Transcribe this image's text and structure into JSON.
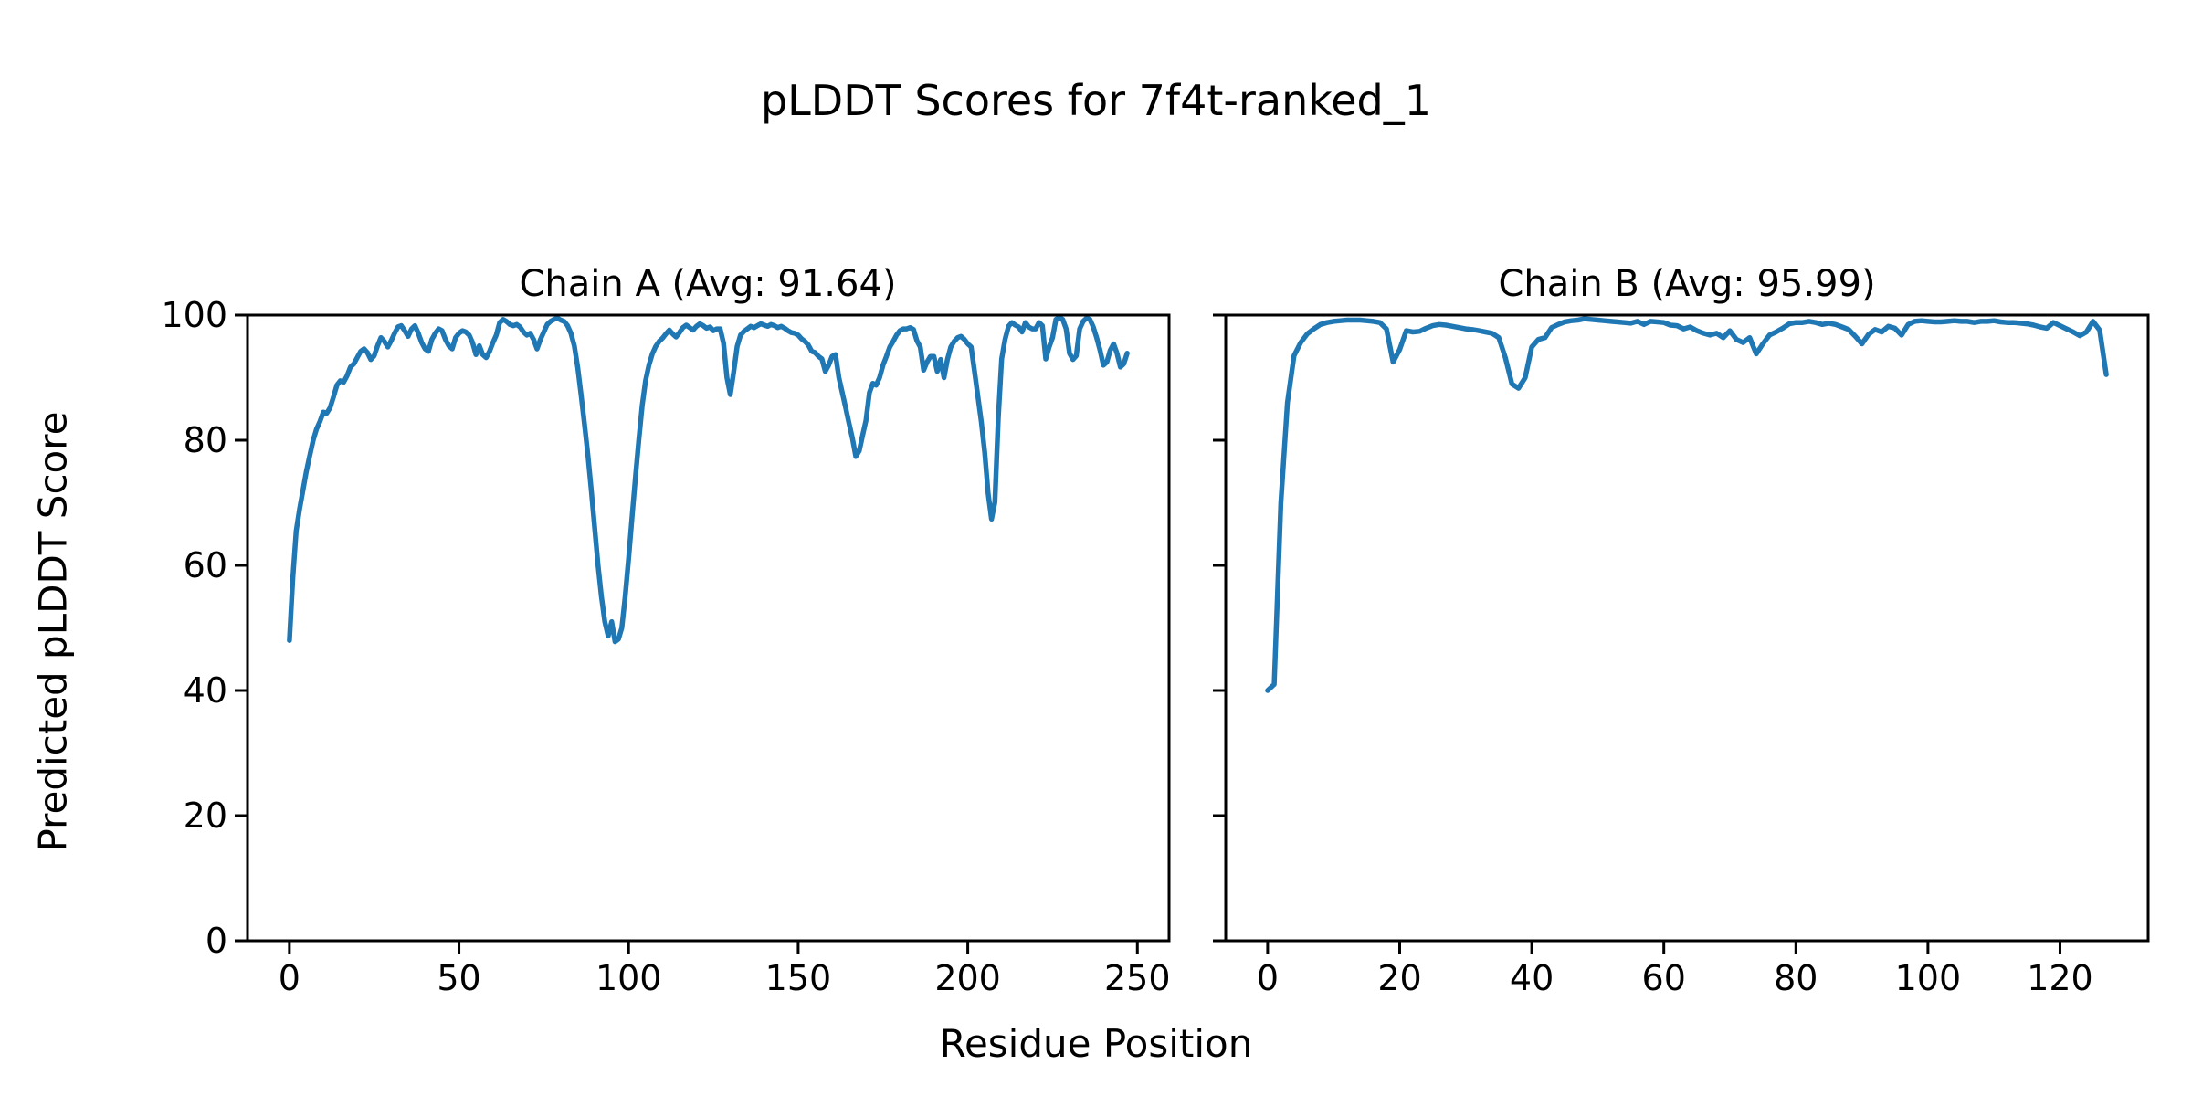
{
  "figure": {
    "title": "pLDDT Scores for 7f4t-ranked_1",
    "xlabel": "Residue Position",
    "ylabel": "Predicted pLDDT Score",
    "line_color": "#1f77b4",
    "axis_color": "#000000",
    "background_color": "#ffffff"
  },
  "chart_data": [
    {
      "type": "line",
      "title": "Chain A (Avg: 91.64)",
      "average": 91.64,
      "legend": "none",
      "grid": false,
      "xlim": [
        -12.35,
        259.35
      ],
      "ylim": [
        0,
        100
      ],
      "xticks": [
        0,
        50,
        100,
        150,
        200,
        250
      ],
      "yticks": [
        0,
        20,
        40,
        60,
        80,
        100
      ],
      "show_ytick_labels": true,
      "series": [
        {
          "name": "Chain A pLDDT",
          "color": "#1f77b4",
          "x_start": 0,
          "x_step": 1,
          "values": [
            48,
            58,
            65.5,
            69,
            72,
            75,
            77.5,
            80,
            81.8,
            83,
            84.5,
            84.3,
            85.2,
            86.9,
            88.8,
            89.5,
            89.3,
            90.3,
            91.7,
            92.2,
            93.2,
            94.2,
            94.6,
            94,
            92.9,
            93.5,
            95.1,
            96.4,
            95.8,
            94.9,
            95.9,
            97.1,
            98.1,
            98.3,
            97.5,
            96.6,
            97.8,
            98.3,
            97.1,
            95.6,
            94.6,
            94.2,
            96.1,
            97.1,
            97.8,
            97.5,
            96.1,
            95.1,
            94.6,
            96.4,
            97.1,
            97.5,
            97.3,
            96.8,
            95.6,
            93.7,
            95.1,
            93.7,
            93.2,
            94.2,
            95.6,
            96.8,
            98.8,
            99.3,
            99,
            98.5,
            98.3,
            98.5,
            98.1,
            97.3,
            96.8,
            97.1,
            96.1,
            94.6,
            96.1,
            97.3,
            98.5,
            99,
            99.3,
            99.5,
            99.2,
            99,
            98.3,
            97.1,
            95.1,
            91.7,
            87.3,
            82.5,
            77.6,
            72,
            66,
            60,
            55,
            51,
            48.7,
            51,
            47.8,
            48.2,
            50,
            55,
            61,
            67.5,
            74,
            80,
            85.5,
            89.5,
            92,
            93.8,
            95,
            95.8,
            96.3,
            97,
            97.6,
            97,
            96.5,
            97.2,
            98,
            98.4,
            98,
            97.6,
            98.2,
            98.6,
            98.3,
            97.9,
            98.1,
            97.5,
            97.8,
            97.8,
            95.5,
            90,
            87.3,
            91,
            95,
            96.8,
            97.4,
            97.8,
            98.2,
            98,
            98.3,
            98.6,
            98.4,
            98.2,
            98.5,
            98.3,
            98,
            98.2,
            97.9,
            97.5,
            97.2,
            97.1,
            96.8,
            96.2,
            95.8,
            95.2,
            94.2,
            94,
            93.4,
            93,
            91,
            92,
            93.4,
            93.7,
            90,
            87.6,
            85.2,
            82.7,
            80.3,
            77.4,
            78.3,
            80.8,
            83.2,
            87.6,
            89.1,
            88.8,
            90,
            92,
            93.4,
            94.9,
            95.8,
            96.8,
            97.5,
            97.8,
            97.8,
            98,
            97.7,
            95.9,
            94.9,
            91.2,
            92.5,
            93.4,
            93.4,
            91,
            92.9,
            90,
            92.9,
            94.9,
            95.8,
            96.4,
            96.6,
            96.1,
            95.4,
            94.9,
            91,
            87,
            83,
            78,
            71.5,
            67.4,
            70.1,
            83.5,
            93,
            96.1,
            98.2,
            98.8,
            98.4,
            98.1,
            97.3,
            98.8,
            98.1,
            97.8,
            97.8,
            98.8,
            98.3,
            93,
            94.9,
            96.4,
            99.3,
            99.6,
            99.3,
            97.8,
            93.9,
            92.9,
            93.5,
            97.8,
            99,
            99.5,
            99.3,
            98.1,
            96.4,
            94.4,
            92,
            92.5,
            94.4,
            95.4,
            93.9,
            91.7,
            92.2,
            93.9
          ]
        }
      ]
    },
    {
      "type": "line",
      "title": "Chain B (Avg: 95.99)",
      "average": 95.99,
      "legend": "none",
      "grid": false,
      "xlim": [
        -6.35,
        133.35
      ],
      "ylim": [
        0,
        100
      ],
      "xticks": [
        0,
        20,
        40,
        60,
        80,
        100,
        120
      ],
      "yticks": [
        0,
        20,
        40,
        60,
        80,
        100
      ],
      "show_ytick_labels": false,
      "series": [
        {
          "name": "Chain B pLDDT",
          "color": "#1f77b4",
          "x_start": 0,
          "x_step": 1,
          "values": [
            40,
            41,
            70,
            86,
            93.5,
            95.6,
            97,
            97.8,
            98.5,
            98.8,
            99,
            99.1,
            99.2,
            99.2,
            99.2,
            99.1,
            99,
            98.8,
            97.8,
            92.5,
            94.5,
            97.5,
            97.3,
            97.4,
            97.9,
            98.3,
            98.5,
            98.4,
            98.2,
            98,
            97.8,
            97.7,
            97.5,
            97.3,
            97.1,
            96.4,
            93.2,
            89,
            88.3,
            90,
            94.9,
            96.1,
            96.4,
            98,
            98.5,
            98.9,
            99.1,
            99.2,
            99.4,
            99.3,
            99.2,
            99.1,
            99,
            98.9,
            98.8,
            98.7,
            99,
            98.5,
            99,
            98.9,
            98.8,
            98.4,
            98.3,
            97.8,
            98.1,
            97.5,
            97.1,
            96.8,
            97.1,
            96.4,
            97.5,
            96.1,
            95.6,
            96.4,
            93.8,
            95.4,
            96.8,
            97.3,
            97.9,
            98.6,
            98.8,
            98.8,
            99,
            98.8,
            98.5,
            98.7,
            98.5,
            98.1,
            97.7,
            96.6,
            95.4,
            96.9,
            97.7,
            97.3,
            98.2,
            97.9,
            96.8,
            98.5,
            99,
            99.1,
            99,
            98.9,
            98.9,
            99,
            99.1,
            99,
            99,
            98.8,
            99,
            99,
            99.1,
            98.9,
            98.8,
            98.8,
            98.7,
            98.6,
            98.4,
            98.1,
            97.9,
            98.8,
            98.3,
            97.8,
            97.3,
            96.7,
            97.3,
            99,
            97.6,
            90.5
          ]
        }
      ]
    }
  ]
}
